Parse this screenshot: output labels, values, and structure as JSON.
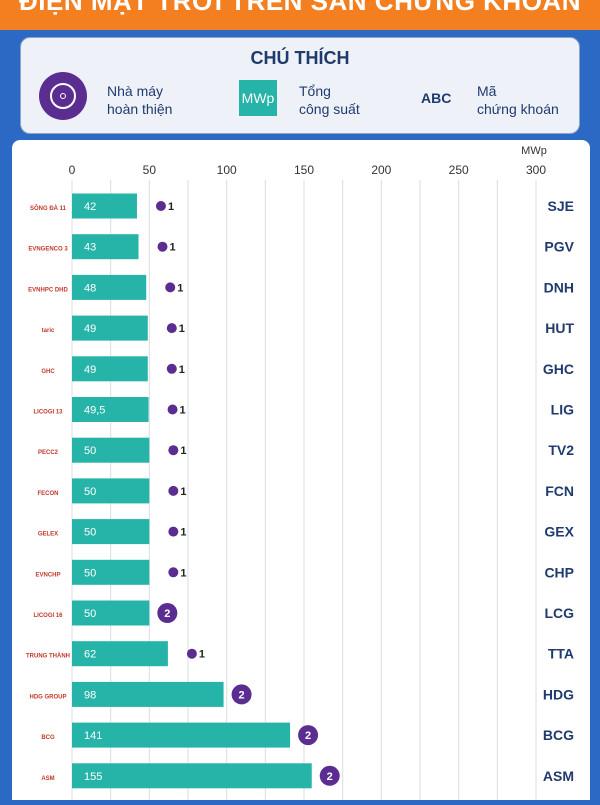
{
  "banner": {
    "title": "ĐIỆN MẶT TRỜI TRÊN SÀN CHỨNG KHOÁN"
  },
  "legend": {
    "title": "CHÚ THÍCH",
    "plant_label_line1": "Nhà máy",
    "plant_label_line2": "hoàn thiện",
    "box_text": "MWp",
    "capacity_label_line1": "Tổng",
    "capacity_label_line2": "công suất",
    "code_example": "ABC",
    "code_label_line1": "Mã",
    "code_label_line2": "chứng khoán"
  },
  "colors": {
    "bar": "#26b3a8",
    "dot": "#5b2d90",
    "code_text": "#1f3b6e",
    "grid": "#d9dde5"
  },
  "chart_data": {
    "type": "bar",
    "orientation": "horizontal",
    "unit": "MWp",
    "xlim": [
      0,
      300
    ],
    "ticks": [
      0,
      50,
      100,
      150,
      200,
      250,
      300
    ],
    "categories": [
      "SJE",
      "PGV",
      "DNH",
      "HUT",
      "GHC",
      "LIG",
      "TV2",
      "FCN",
      "GEX",
      "CHP",
      "LCG",
      "TTA",
      "HDG",
      "BCG",
      "ASM"
    ],
    "values": [
      42,
      43,
      48,
      49,
      49,
      49.5,
      50,
      50,
      50,
      50,
      50,
      62,
      98,
      141,
      155
    ],
    "value_labels": [
      "42",
      "43",
      "48",
      "49",
      "49",
      "49,5",
      "50",
      "50",
      "50",
      "50",
      "50",
      "62",
      "98",
      "141",
      "155"
    ],
    "plants": [
      1,
      1,
      1,
      1,
      1,
      1,
      1,
      1,
      1,
      1,
      2,
      1,
      2,
      2,
      2
    ],
    "logos": [
      "SÔNG ĐÀ 11",
      "EVNGENCO 3",
      "EVNHPC DHD",
      "taric",
      "GHC",
      "LICOGI 13",
      "PECC2",
      "FECON",
      "GELEX",
      "EVNCHP",
      "LICOGI 16",
      "TRUNG THÀNH",
      "HDG GROUP",
      "BCG",
      "ASM"
    ]
  }
}
